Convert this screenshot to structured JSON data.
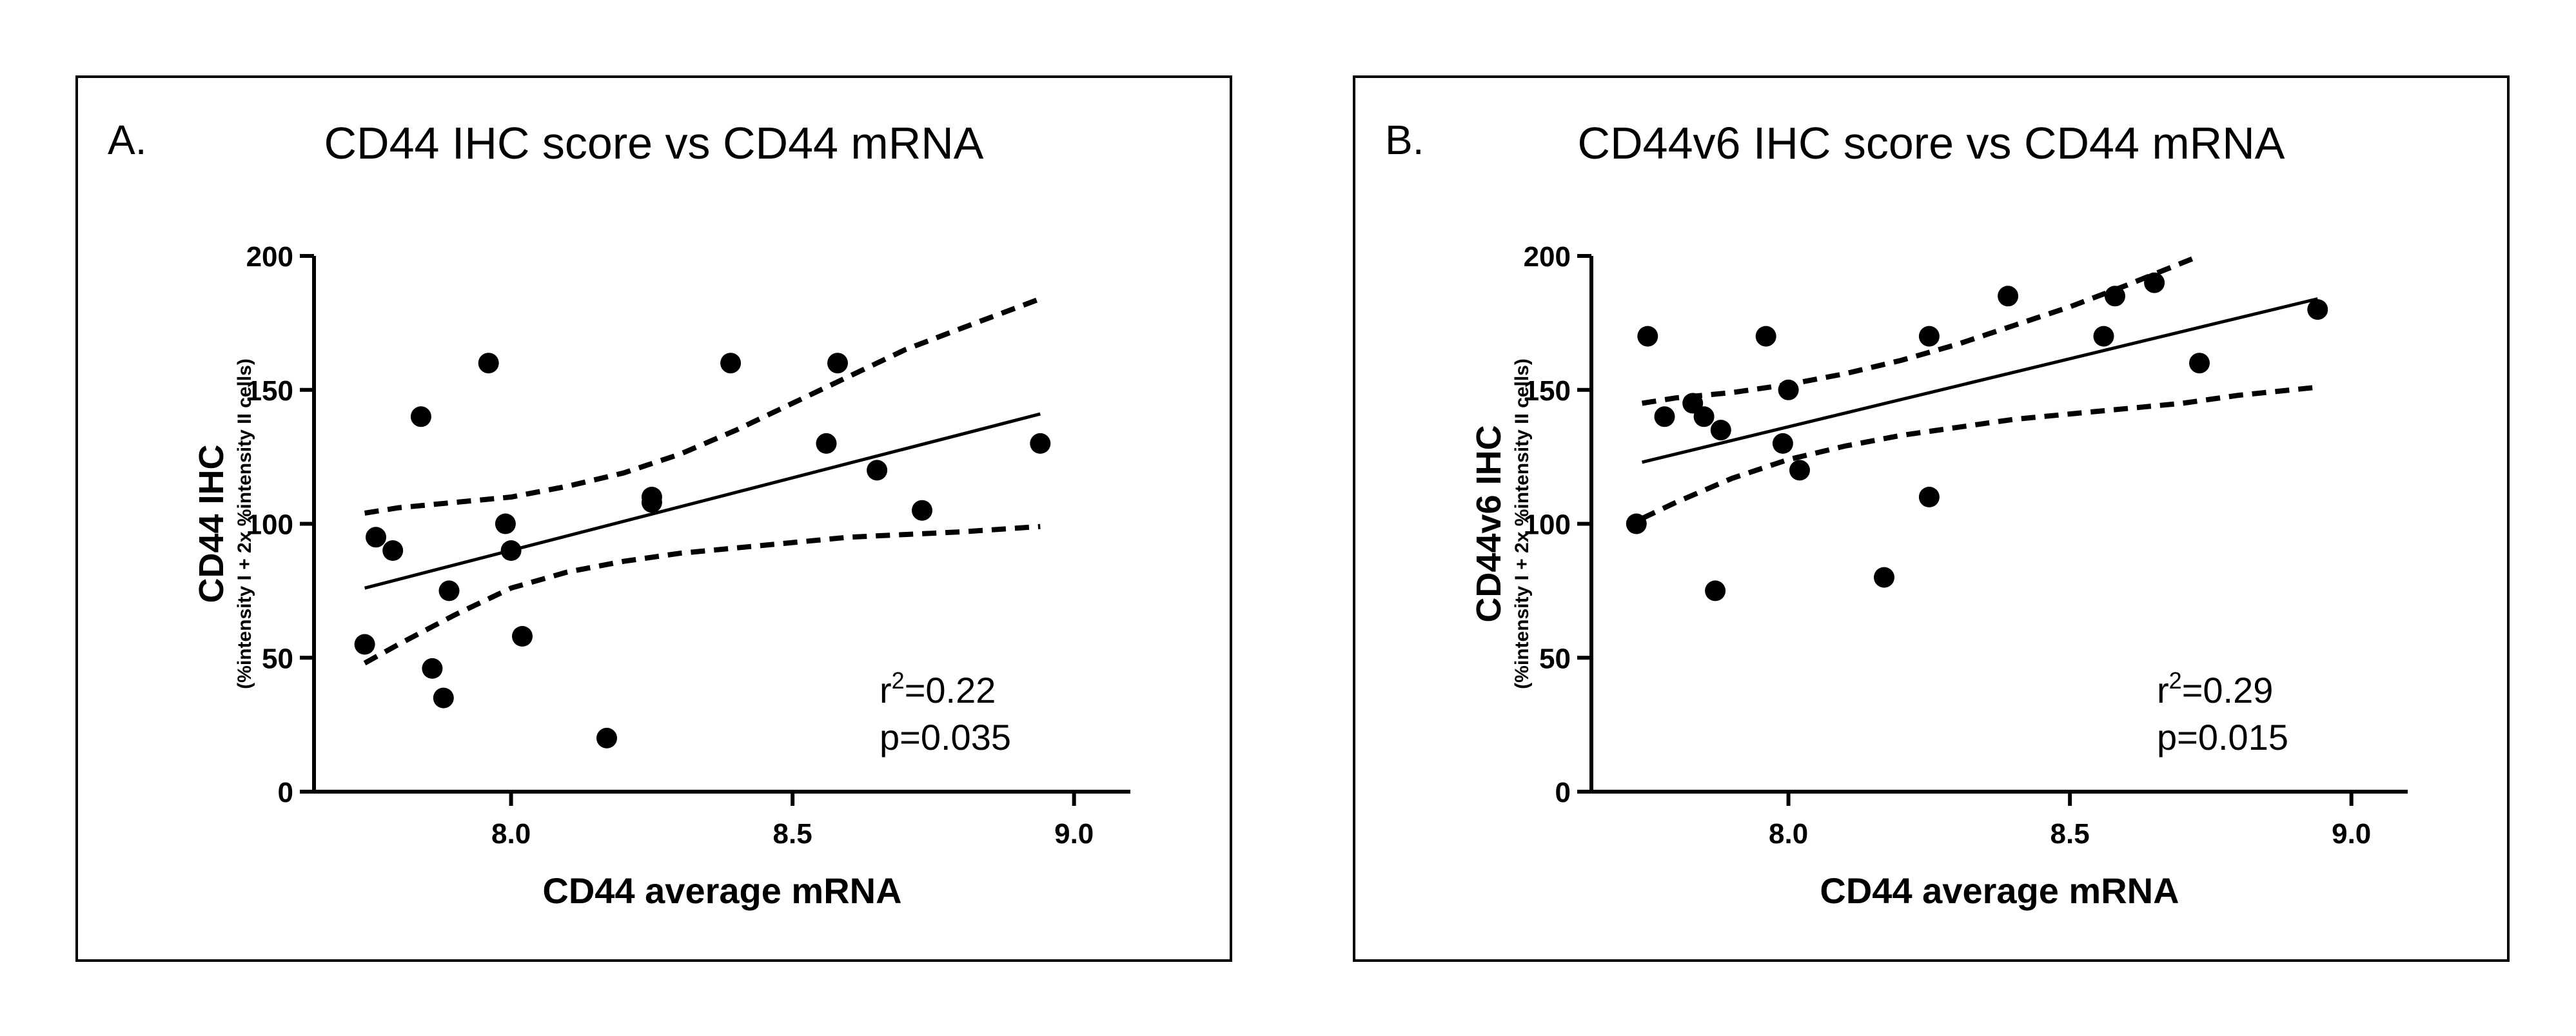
{
  "chart_data": [
    {
      "type": "scatter",
      "letter": "A.",
      "title": "CD44 IHC score vs CD44 mRNA",
      "xlabel": "CD44 average mRNA",
      "ylabel": "CD44 IHC",
      "ylabel_sub": "(%intensity I + 2x %intensity II cells)",
      "xlim": [
        7.65,
        9.1
      ],
      "ylim": [
        0,
        200
      ],
      "xticks": [
        8.0,
        8.5,
        9.0
      ],
      "xtick_labels": [
        "8.0",
        "8.5",
        "9.0"
      ],
      "yticks": [
        0,
        50,
        100,
        150,
        200
      ],
      "ytick_labels": [
        "0",
        "50",
        "100",
        "150",
        "200"
      ],
      "r2_base": "r",
      "r2_sup": "2",
      "r2_value": "=0.22",
      "p_text": "p=0.035",
      "points": [
        {
          "x": 7.74,
          "y": 55
        },
        {
          "x": 7.76,
          "y": 95
        },
        {
          "x": 7.79,
          "y": 90
        },
        {
          "x": 7.84,
          "y": 140
        },
        {
          "x": 7.86,
          "y": 46
        },
        {
          "x": 7.88,
          "y": 35
        },
        {
          "x": 7.89,
          "y": 75
        },
        {
          "x": 7.96,
          "y": 160
        },
        {
          "x": 7.99,
          "y": 100
        },
        {
          "x": 8.0,
          "y": 90
        },
        {
          "x": 8.02,
          "y": 58
        },
        {
          "x": 8.17,
          "y": 20
        },
        {
          "x": 8.25,
          "y": 110
        },
        {
          "x": 8.25,
          "y": 108
        },
        {
          "x": 8.39,
          "y": 160
        },
        {
          "x": 8.56,
          "y": 130
        },
        {
          "x": 8.58,
          "y": 160
        },
        {
          "x": 8.65,
          "y": 120
        },
        {
          "x": 8.73,
          "y": 105
        },
        {
          "x": 8.94,
          "y": 130
        }
      ],
      "fit": {
        "x": [
          7.74,
          8.94
        ],
        "y": [
          76,
          141
        ]
      },
      "ci_upper": {
        "x": [
          7.74,
          7.8,
          7.9,
          8.0,
          8.1,
          8.2,
          8.3,
          8.4,
          8.5,
          8.6,
          8.7,
          8.8,
          8.94
        ],
        "y": [
          104,
          106,
          108,
          110,
          114,
          119,
          126,
          135,
          145,
          155,
          165,
          173,
          184
        ]
      },
      "ci_lower": {
        "x": [
          7.74,
          7.8,
          7.9,
          8.0,
          8.1,
          8.2,
          8.3,
          8.4,
          8.5,
          8.6,
          8.7,
          8.8,
          8.94
        ],
        "y": [
          48,
          55,
          66,
          76,
          82,
          86,
          89,
          91,
          93,
          95,
          96,
          97,
          99
        ]
      }
    },
    {
      "type": "scatter",
      "letter": "B.",
      "title": "CD44v6 IHC score vs CD44 mRNA",
      "xlabel": "CD44 average mRNA",
      "ylabel": "CD44v6 IHC",
      "ylabel_sub": "(%intensity I + 2x %intensity II cells)",
      "xlim": [
        7.65,
        9.1
      ],
      "ylim": [
        0,
        200
      ],
      "xticks": [
        8.0,
        8.5,
        9.0
      ],
      "xtick_labels": [
        "8.0",
        "8.5",
        "9.0"
      ],
      "yticks": [
        0,
        50,
        100,
        150,
        200
      ],
      "ytick_labels": [
        "0",
        "50",
        "100",
        "150",
        "200"
      ],
      "r2_base": "r",
      "r2_sup": "2",
      "r2_value": "=0.29",
      "p_text": "p=0.015",
      "points": [
        {
          "x": 7.73,
          "y": 100
        },
        {
          "x": 7.75,
          "y": 170
        },
        {
          "x": 7.78,
          "y": 140
        },
        {
          "x": 7.83,
          "y": 145
        },
        {
          "x": 7.85,
          "y": 140
        },
        {
          "x": 7.87,
          "y": 75
        },
        {
          "x": 7.88,
          "y": 135
        },
        {
          "x": 7.96,
          "y": 170
        },
        {
          "x": 7.99,
          "y": 130
        },
        {
          "x": 8.0,
          "y": 150
        },
        {
          "x": 8.02,
          "y": 120
        },
        {
          "x": 8.17,
          "y": 80
        },
        {
          "x": 8.25,
          "y": 170
        },
        {
          "x": 8.25,
          "y": 110
        },
        {
          "x": 8.39,
          "y": 185
        },
        {
          "x": 8.56,
          "y": 170
        },
        {
          "x": 8.58,
          "y": 185
        },
        {
          "x": 8.65,
          "y": 190
        },
        {
          "x": 8.73,
          "y": 160
        },
        {
          "x": 8.94,
          "y": 180
        }
      ],
      "fit": {
        "x": [
          7.74,
          8.94
        ],
        "y": [
          123,
          184
        ]
      },
      "ci_upper": {
        "x": [
          7.74,
          7.8,
          7.9,
          8.0,
          8.1,
          8.2,
          8.3,
          8.4,
          8.5,
          8.6,
          8.73
        ],
        "y": [
          145,
          147,
          149,
          152,
          156,
          161,
          167,
          174,
          181,
          189,
          200
        ]
      },
      "ci_lower": {
        "x": [
          7.74,
          7.8,
          7.9,
          8.0,
          8.1,
          8.2,
          8.3,
          8.4,
          8.5,
          8.6,
          8.7,
          8.8,
          8.94
        ],
        "y": [
          102,
          108,
          117,
          124,
          129,
          133,
          136,
          139,
          141,
          143,
          145,
          148,
          151
        ]
      }
    }
  ]
}
